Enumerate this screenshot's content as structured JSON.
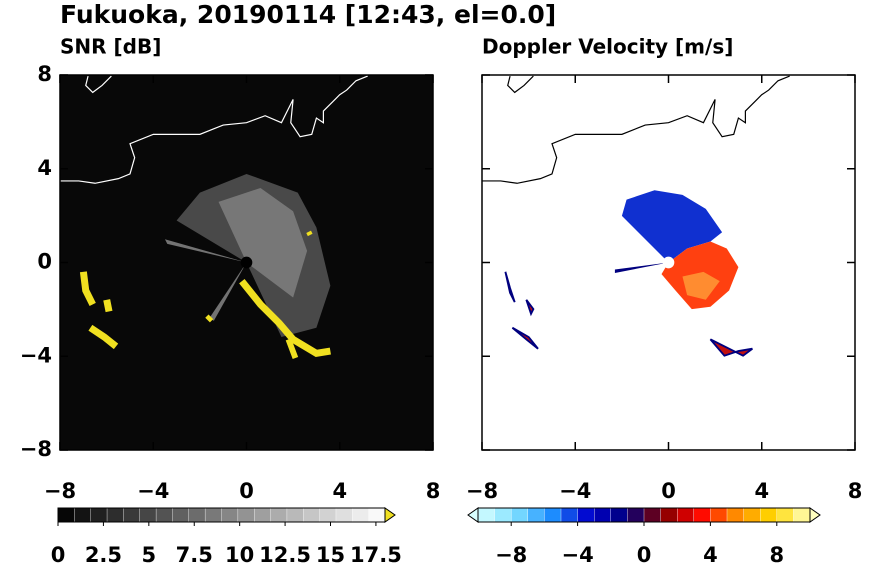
{
  "title": "Fukuoka, 20190114 [12:43, el=0.0]",
  "chart_data": [
    {
      "type": "heatmap",
      "title": "SNR [dB]",
      "xlim": [
        -8,
        8
      ],
      "ylim": [
        -8,
        8
      ],
      "xticks": [
        {
          "value": -8,
          "label": "−8"
        },
        {
          "value": -4,
          "label": "−4"
        },
        0,
        4,
        8
      ],
      "yticks": [
        {
          "value": -8,
          "label": "−8"
        },
        {
          "value": -4,
          "label": "−4"
        },
        0,
        4,
        8
      ],
      "colorbar": {
        "lim": [
          0,
          18
        ],
        "ticks": [
          0,
          2.5,
          5,
          7.5,
          10,
          12.5,
          15,
          17.5
        ],
        "colors": [
          "#000000",
          "#ffffff"
        ],
        "over_color": "#f0e020"
      }
    },
    {
      "type": "heatmap",
      "title": "Doppler Velocity [m/s]",
      "xlim": [
        -8,
        8
      ],
      "ylim": [
        -8,
        8
      ],
      "xticks": [
        {
          "value": -8,
          "label": "−8"
        },
        {
          "value": -4,
          "label": "−4"
        },
        0,
        4,
        8
      ],
      "yticks": [
        {
          "value": -8,
          "label": "−8"
        },
        {
          "value": -4,
          "label": "−4"
        },
        0,
        4,
        8
      ],
      "colorbar": {
        "lim": [
          -10,
          10
        ],
        "ticks": [
          {
            "value": -8,
            "label": "−8"
          },
          {
            "value": -4,
            "label": "−4"
          },
          0,
          4,
          8
        ],
        "colors": [
          "#d8ffff",
          "#7fe0ff",
          "#1e90ff",
          "#0000cd",
          "#00007f",
          "#800000",
          "#ff0000",
          "#ff8c00",
          "#ffd700",
          "#ffffc0"
        ],
        "under_color": "#d8ffff",
        "over_color": "#ffffc0"
      }
    }
  ]
}
